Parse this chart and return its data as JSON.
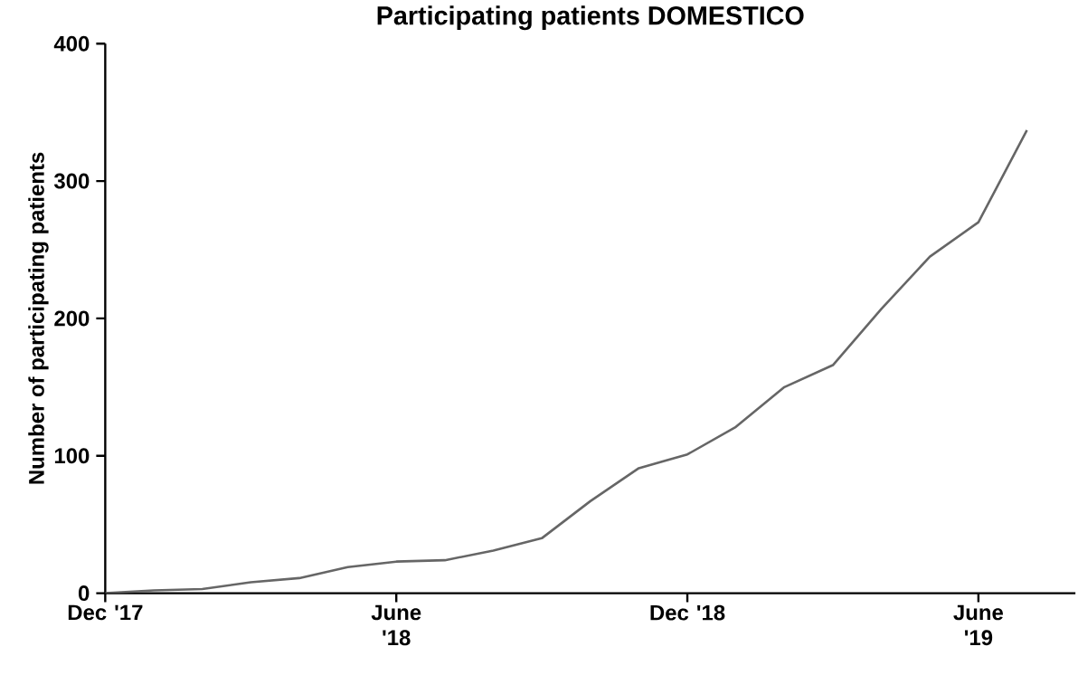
{
  "chart_data": {
    "type": "line",
    "title": "Participating patients DOMESTICO",
    "ylabel": "Number of participating patients",
    "x": [
      "2017-12",
      "2018-01",
      "2018-02",
      "2018-03",
      "2018-04",
      "2018-05",
      "2018-06",
      "2018-07",
      "2018-08",
      "2018-09",
      "2018-10",
      "2018-11",
      "2018-12",
      "2019-01",
      "2019-02",
      "2019-03",
      "2019-04",
      "2019-05",
      "2019-06",
      "2019-07"
    ],
    "series": [
      {
        "color": "#666666",
        "values": [
          0,
          2,
          3,
          8,
          11,
          19,
          23,
          24,
          31,
          40,
          67,
          91,
          101,
          121,
          150,
          166,
          207,
          245,
          270,
          337
        ]
      }
    ],
    "xlim": [
      "2017-12",
      "2019-08"
    ],
    "xticks": [
      {
        "value": "2017-12",
        "label": "Dec '17"
      },
      {
        "value": "2018-06",
        "label": "June '18"
      },
      {
        "value": "2018-12",
        "label": "Dec '18"
      },
      {
        "value": "2019-06",
        "label": "June '19"
      }
    ],
    "ylim": [
      0,
      400
    ],
    "yticks": [
      0,
      100,
      200,
      300,
      400
    ],
    "grid": false,
    "marker": "none",
    "line_style": "solid"
  }
}
